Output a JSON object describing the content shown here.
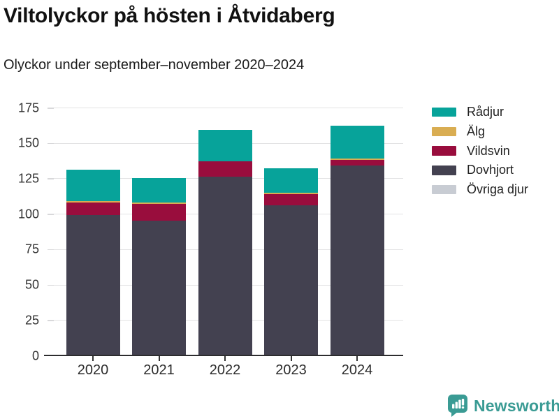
{
  "title": "Viltolyckor på hösten i Åtvidaberg",
  "subtitle": "Olyckor under september–november 2020–2024",
  "chart_data": {
    "type": "bar",
    "stacked": true,
    "title": "Viltolyckor på hösten i Åtvidaberg",
    "subtitle": "Olyckor under september–november 2020–2024",
    "categories": [
      "2020",
      "2021",
      "2022",
      "2023",
      "2024"
    ],
    "series": [
      {
        "name": "Rådjur",
        "color": "#07a39a",
        "values": [
          22,
          17,
          22,
          17,
          23
        ]
      },
      {
        "name": "Älg",
        "color": "#d9ad52",
        "values": [
          1,
          1,
          0,
          1,
          1
        ]
      },
      {
        "name": "Vildsvin",
        "color": "#990d3d",
        "values": [
          9,
          12,
          11,
          8,
          4
        ]
      },
      {
        "name": "Dovhjort",
        "color": "#434150",
        "values": [
          99,
          95,
          126,
          106,
          134
        ]
      },
      {
        "name": "Övriga djur",
        "color": "#c8ccd3",
        "values": [
          0,
          0,
          0,
          0,
          0
        ]
      }
    ],
    "stack_order_bottom_to_top": [
      "Övriga djur",
      "Dovhjort",
      "Vildsvin",
      "Älg",
      "Rådjur"
    ],
    "stack_totals": [
      131,
      125,
      159,
      132,
      162
    ],
    "ylim": [
      0,
      175
    ],
    "yticks": [
      0,
      25,
      50,
      75,
      100,
      125,
      150,
      175
    ],
    "grid": true,
    "legend_position": "right"
  },
  "footer": {
    "brand": "Newsworthy",
    "brand_color": "#3a9b94",
    "logo_icon": "speech-bubble-bar-chart"
  }
}
